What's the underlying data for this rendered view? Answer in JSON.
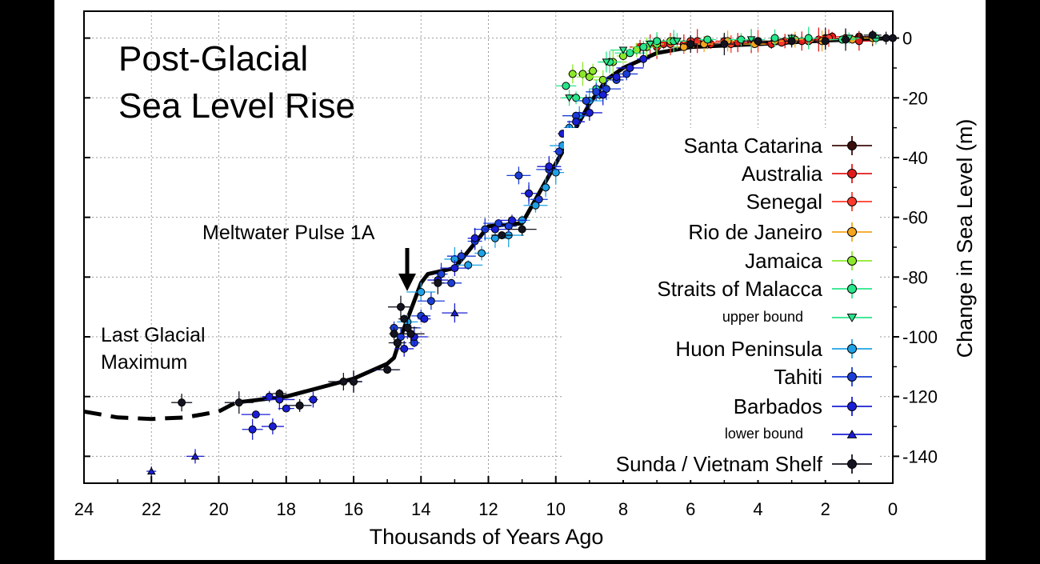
{
  "chart_data": {
    "type": "scatter",
    "title": "Post-Glacial",
    "title_line2": "Sea Level Rise",
    "xlabel": "Thousands of Years Ago",
    "ylabel": "Change in Sea Level (m)",
    "xlim": [
      24,
      0
    ],
    "ylim": [
      -149,
      9
    ],
    "x_reversed": true,
    "x_ticks": [
      24,
      22,
      20,
      18,
      16,
      14,
      12,
      10,
      8,
      6,
      4,
      2,
      0
    ],
    "y_ticks": [
      0,
      -20,
      -40,
      -60,
      -80,
      -100,
      -120,
      -140
    ],
    "y_axis_side": "right",
    "grid": true,
    "legend_placement": "right",
    "annotations": [
      {
        "text": "Meltwater Pulse 1A",
        "arrow_to": {
          "x": 14.3,
          "y": -84
        }
      },
      {
        "text": "Last Glacial",
        "text_line2": "Maximum"
      }
    ],
    "trend_line": {
      "style": "solid",
      "points": [
        [
          19.5,
          -122
        ],
        [
          18,
          -120
        ],
        [
          17,
          -117
        ],
        [
          16,
          -114
        ],
        [
          15,
          -109
        ],
        [
          14.8,
          -107
        ],
        [
          14.6,
          -100
        ],
        [
          14.3,
          -91
        ],
        [
          14.0,
          -82
        ],
        [
          13.8,
          -79
        ],
        [
          13.0,
          -77
        ],
        [
          12.0,
          -63
        ],
        [
          11.0,
          -62
        ],
        [
          10,
          -42
        ],
        [
          9,
          -22
        ],
        [
          8.5,
          -14
        ],
        [
          8,
          -10
        ],
        [
          7,
          -5
        ],
        [
          6,
          -3
        ],
        [
          4,
          -2
        ],
        [
          2,
          -0.8
        ],
        [
          0,
          0
        ]
      ]
    },
    "lgm_curve": {
      "style": "dashed",
      "points": [
        [
          24,
          -125
        ],
        [
          23,
          -127
        ],
        [
          22,
          -127.5
        ],
        [
          21,
          -127
        ],
        [
          20,
          -125
        ],
        [
          19.5,
          -122
        ]
      ]
    },
    "series": [
      {
        "name": "Santa Catarina",
        "marker": "circle",
        "color": "#3a0d0a",
        "points": [
          [
            3.5,
            -1
          ],
          [
            3.0,
            -0.5
          ],
          [
            2.5,
            -1
          ],
          [
            2.0,
            0
          ],
          [
            1.5,
            -0.5
          ],
          [
            1.0,
            0.5
          ],
          [
            0.6,
            0
          ]
        ]
      },
      {
        "name": "Australia",
        "marker": "circle",
        "color": "#e31a1a",
        "points": [
          [
            7.5,
            -3
          ],
          [
            7.2,
            -2
          ],
          [
            7.0,
            -3
          ],
          [
            6.8,
            -2
          ],
          [
            6.5,
            -1
          ],
          [
            6.2,
            -2
          ],
          [
            5.8,
            -1
          ],
          [
            5.4,
            -2
          ],
          [
            5.0,
            -1
          ],
          [
            4.6,
            -1.5
          ],
          [
            4.2,
            -1
          ],
          [
            3.6,
            -2
          ],
          [
            3.2,
            -1
          ],
          [
            2.7,
            -1
          ],
          [
            2.2,
            -0.5
          ],
          [
            1.8,
            0.5
          ],
          [
            1.4,
            0
          ],
          [
            1.0,
            -1
          ]
        ]
      },
      {
        "name": "Senegal",
        "marker": "circle",
        "color": "#ff3a2a",
        "points": [
          [
            6.6,
            -2
          ],
          [
            6.0,
            -1
          ],
          [
            5.5,
            -1.5
          ],
          [
            4.8,
            -2
          ],
          [
            4.0,
            -1
          ],
          [
            3.3,
            -1.5
          ],
          [
            2.5,
            -1
          ],
          [
            1.9,
            0
          ]
        ]
      },
      {
        "name": "Rio de Janeiro",
        "marker": "circle",
        "color": "#f3a51d",
        "points": [
          [
            6.2,
            -3
          ],
          [
            5.6,
            -2
          ],
          [
            4.9,
            -1
          ],
          [
            4.1,
            -2
          ],
          [
            3.5,
            -1
          ],
          [
            2.9,
            -0.5
          ],
          [
            2.1,
            -1
          ],
          [
            1.2,
            -0.5
          ],
          [
            0.6,
            0
          ]
        ]
      },
      {
        "name": "Jamaica",
        "marker": "circle",
        "color": "#8ee82a",
        "points": [
          [
            9.5,
            -12
          ],
          [
            9.2,
            -12
          ],
          [
            9.0,
            -13
          ],
          [
            8.9,
            -11
          ],
          [
            8.6,
            -14
          ],
          [
            8.3,
            -8
          ],
          [
            8.0,
            -6
          ],
          [
            7.6,
            -4
          ],
          [
            7.3,
            -3
          ],
          [
            7.0,
            -2
          ],
          [
            6.6,
            -1
          ]
        ]
      },
      {
        "name": "Straits of Malacca",
        "marker": "circle",
        "color": "#28e68a",
        "points": [
          [
            9.7,
            -16
          ],
          [
            9.4,
            -20
          ],
          [
            8.8,
            -17
          ],
          [
            8.4,
            -8
          ],
          [
            7.8,
            -5
          ],
          [
            7.4,
            -3
          ],
          [
            7.0,
            -1
          ],
          [
            6.5,
            -1
          ],
          [
            5.5,
            -0.5
          ],
          [
            4.5,
            -0.5
          ],
          [
            3.5,
            0
          ],
          [
            2.5,
            0
          ],
          [
            1.5,
            -0.5
          ],
          [
            0.5,
            0
          ]
        ]
      },
      {
        "name": "upper bound",
        "marker": "triangle-down",
        "color": "#28e68a",
        "points": [
          [
            9.6,
            -20
          ],
          [
            8.5,
            -8
          ],
          [
            8.0,
            -4
          ],
          [
            7.2,
            -2
          ],
          [
            6.4,
            -1
          ],
          [
            4.2,
            -0.5
          ],
          [
            3.0,
            0
          ],
          [
            1.3,
            0
          ]
        ]
      },
      {
        "name": "Huon Peninsula",
        "marker": "circle",
        "color": "#1fa2e5",
        "points": [
          [
            13.0,
            -74
          ],
          [
            12.6,
            -76
          ],
          [
            12.2,
            -72
          ],
          [
            11.8,
            -67
          ],
          [
            11.4,
            -66
          ],
          [
            11.0,
            -61
          ],
          [
            10.6,
            -56
          ],
          [
            10.3,
            -50
          ],
          [
            10.0,
            -45
          ],
          [
            9.8,
            -36
          ],
          [
            9.6,
            -30
          ],
          [
            9.3,
            -26
          ],
          [
            9.0,
            -21
          ],
          [
            8.7,
            -19
          ],
          [
            14.4,
            -95
          ],
          [
            14.0,
            -85
          ]
        ]
      },
      {
        "name": "Tahiti",
        "marker": "circle",
        "color": "#1a3ed6",
        "points": [
          [
            14.8,
            -97
          ],
          [
            14.6,
            -100
          ],
          [
            14.4,
            -97
          ],
          [
            14.2,
            -102
          ],
          [
            14.0,
            -93
          ],
          [
            13.7,
            -88
          ],
          [
            13.4,
            -79
          ],
          [
            13.1,
            -82
          ],
          [
            12.8,
            -73
          ],
          [
            12.4,
            -68
          ],
          [
            12.1,
            -64
          ],
          [
            11.7,
            -62
          ],
          [
            11.4,
            -63
          ],
          [
            11.1,
            -46
          ],
          [
            10.8,
            -52
          ],
          [
            10.5,
            -54
          ],
          [
            10.2,
            -44
          ],
          [
            9.9,
            -38
          ],
          [
            9.6,
            -32
          ],
          [
            9.4,
            -26
          ],
          [
            9.1,
            -21
          ],
          [
            8.8,
            -18
          ],
          [
            8.5,
            -17
          ],
          [
            8.2,
            -14
          ],
          [
            7.9,
            -12
          ]
        ]
      },
      {
        "name": "Barbados",
        "marker": "circle",
        "color": "#1a1ed6",
        "points": [
          [
            19.0,
            -131
          ],
          [
            18.9,
            -126
          ],
          [
            18.5,
            -120
          ],
          [
            18.4,
            -130
          ],
          [
            18.2,
            -121
          ],
          [
            18.0,
            -124
          ],
          [
            17.6,
            -123
          ],
          [
            17.2,
            -121
          ],
          [
            16.0,
            -115
          ],
          [
            15.0,
            -111
          ],
          [
            14.7,
            -102
          ],
          [
            14.5,
            -104
          ],
          [
            14.2,
            -100
          ],
          [
            13.9,
            -94
          ],
          [
            13.5,
            -81
          ],
          [
            13.0,
            -77
          ],
          [
            12.4,
            -67
          ],
          [
            11.8,
            -64
          ],
          [
            11.3,
            -61
          ],
          [
            10.8,
            -52
          ],
          [
            10.2,
            -43
          ],
          [
            9.8,
            -32
          ],
          [
            9.4,
            -28
          ],
          [
            9.0,
            -25
          ],
          [
            8.6,
            -19
          ],
          [
            8.2,
            -13
          ],
          [
            7.8,
            -10
          ],
          [
            7.4,
            -7
          ]
        ]
      },
      {
        "name": "lower bound",
        "marker": "triangle-up",
        "color": "#1a1ed6",
        "points": [
          [
            22.0,
            -145
          ],
          [
            20.7,
            -140
          ],
          [
            13.0,
            -92
          ]
        ]
      },
      {
        "name": "Sunda / Vietnam Shelf",
        "marker": "circle",
        "color": "#141420",
        "points": [
          [
            21.1,
            -122
          ],
          [
            19.4,
            -122
          ],
          [
            18.2,
            -119
          ],
          [
            17.6,
            -123
          ],
          [
            16.3,
            -115
          ],
          [
            16.0,
            -115
          ],
          [
            15.0,
            -111
          ],
          [
            14.8,
            -99
          ],
          [
            14.7,
            -102
          ],
          [
            14.6,
            -90
          ],
          [
            14.5,
            -94
          ],
          [
            14.4,
            -97
          ],
          [
            14.3,
            -99
          ],
          [
            13.5,
            -82
          ],
          [
            11.6,
            -66
          ],
          [
            11.0,
            -64
          ],
          [
            6.0,
            -2
          ],
          [
            5.0,
            -2
          ],
          [
            4.0,
            -1
          ],
          [
            3.0,
            -1
          ],
          [
            2.0,
            -1
          ],
          [
            1.4,
            -0.5
          ],
          [
            0.6,
            1
          ],
          [
            0.2,
            0
          ],
          [
            0.0,
            0
          ]
        ]
      }
    ]
  }
}
